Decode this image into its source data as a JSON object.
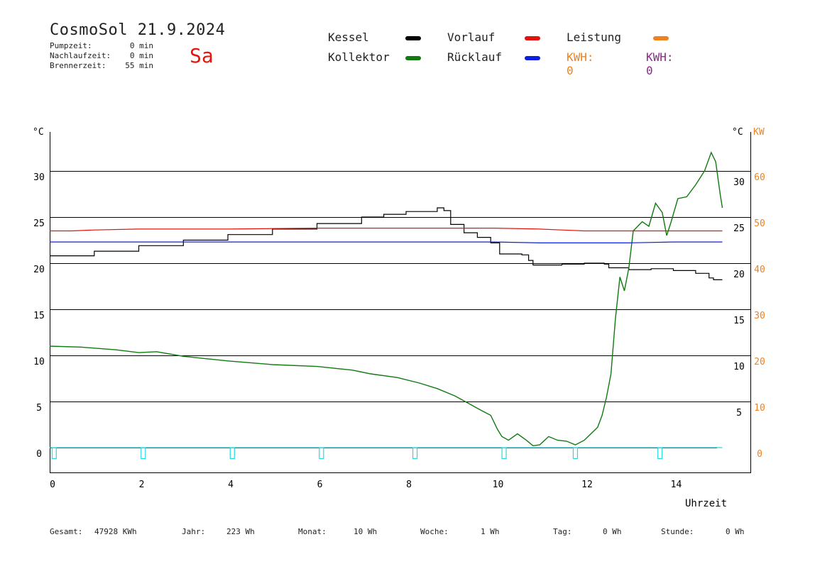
{
  "header": {
    "title": "CosmoSol 21.9.2024",
    "day": "Sa",
    "pump_label": "Pumpzeit:",
    "pump_value": "0 min",
    "nachlauf_label": "Nachlaufzeit:",
    "nachlauf_value": "0 min",
    "brenner_label": "Brennerzeit:",
    "brenner_value": "55 min"
  },
  "legend": {
    "kessel": "Kessel",
    "kollektor": "Kollektor",
    "vorlauf": "Vorlauf",
    "ruecklauf": "Rücklauf",
    "leistung": "Leistung",
    "kwh1": "KWH: 0",
    "kwh2": "KWH: 0"
  },
  "colors": {
    "kessel": "#000000",
    "kollektor": "#117a11",
    "vorlauf": "#e0140c",
    "ruecklauf": "#0c1ee0",
    "leistung": "#f0821e",
    "kwh2": "#8a2a8a",
    "pump": "#2ad8e0",
    "grid": "#000000"
  },
  "footer": {
    "gesamt_label": "Gesamt:",
    "gesamt_value": "47928 KWh",
    "jahr_label": "Jahr:",
    "jahr_value": "223 Wh",
    "monat_label": "Monat:",
    "monat_value": "10 Wh",
    "woche_label": "Woche:",
    "woche_value": "1 Wh",
    "tag_label": "Tag:",
    "tag_value": "0 Wh",
    "stunde_label": "Stunde:",
    "stunde_value": "0 Wh"
  },
  "chart_data": {
    "type": "line",
    "xlabel": "Uhrzeit",
    "ylabel_left": "°C",
    "ylabel_right_c": "°C",
    "ylabel_right_kw": "KW",
    "xlim": [
      0,
      16
    ],
    "ylim": [
      -2.5,
      34.5
    ],
    "x_ticks": [
      0,
      2,
      4,
      6,
      8,
      10,
      12,
      14
    ],
    "y_left_ticks": [
      0,
      5,
      10,
      15,
      20,
      25,
      30
    ],
    "y_right_c_ticks": [
      5,
      10,
      15,
      20,
      25,
      30
    ],
    "y_right_kw_ticks": [
      0,
      10,
      20,
      30,
      40,
      50,
      60
    ],
    "grid": true,
    "series": [
      {
        "name": "Kessel",
        "x": [
          0,
          1,
          2,
          3,
          4,
          5,
          6,
          7,
          7.5,
          8,
          8.7,
          8.85,
          9.0,
          9.3,
          9.6,
          9.9,
          10.1,
          10.3,
          10.6,
          10.75,
          10.85,
          11.5,
          12.0,
          12.45,
          12.55,
          13.0,
          13.5,
          14.0,
          14.5,
          14.8,
          14.9,
          15.1
        ],
        "y": [
          20.8,
          21.3,
          21.9,
          22.5,
          23.1,
          23.7,
          24.3,
          25.0,
          25.3,
          25.6,
          26.0,
          25.7,
          24.2,
          23.3,
          22.8,
          22.2,
          21.0,
          21.0,
          20.9,
          20.3,
          19.8,
          19.9,
          20.0,
          19.9,
          19.5,
          19.3,
          19.4,
          19.2,
          18.9,
          18.4,
          18.2,
          18.2
        ]
      },
      {
        "name": "Kollektor",
        "x": [
          0,
          0.7,
          1.5,
          2.0,
          2.4,
          3.0,
          4.0,
          5.0,
          6.0,
          6.8,
          7.2,
          7.8,
          8.3,
          8.7,
          9.1,
          9.4,
          9.7,
          9.9,
          10.05,
          10.15,
          10.3,
          10.5,
          10.7,
          10.85,
          11.0,
          11.2,
          11.4,
          11.6,
          11.8,
          12.0,
          12.15,
          12.3,
          12.4,
          12.5,
          12.6,
          12.7,
          12.8,
          12.9,
          13.0,
          13.1,
          13.3,
          13.45,
          13.6,
          13.75,
          13.85,
          13.95,
          14.1,
          14.3,
          14.5,
          14.7,
          14.85,
          14.95,
          15.05,
          15.1
        ],
        "y": [
          11.0,
          10.9,
          10.6,
          10.3,
          10.4,
          9.9,
          9.4,
          9.0,
          8.8,
          8.4,
          8.0,
          7.6,
          7.0,
          6.4,
          5.6,
          4.8,
          4.0,
          3.5,
          2.0,
          1.2,
          0.8,
          1.5,
          0.8,
          0.2,
          0.3,
          1.2,
          0.8,
          0.7,
          0.3,
          0.8,
          1.5,
          2.2,
          3.5,
          5.5,
          8.0,
          14.0,
          18.5,
          17.0,
          19.5,
          23.5,
          24.5,
          24.0,
          26.5,
          25.5,
          23.0,
          24.5,
          27.0,
          27.2,
          28.5,
          30.0,
          32.0,
          31.0,
          27.5,
          26.0
        ]
      },
      {
        "name": "Vorlauf",
        "x": [
          0,
          0.5,
          1.0,
          2.0,
          4.0,
          6.0,
          8.0,
          9.0,
          10.0,
          11.0,
          11.5,
          12.0,
          13.0,
          14.0,
          15.1
        ],
        "y": [
          23.5,
          23.5,
          23.6,
          23.7,
          23.7,
          23.8,
          23.8,
          23.8,
          23.8,
          23.7,
          23.6,
          23.5,
          23.5,
          23.5,
          23.5
        ]
      },
      {
        "name": "Rücklauf",
        "x": [
          0,
          2.0,
          4.0,
          6.0,
          8.0,
          9.0,
          10.0,
          11.0,
          12.0,
          13.0,
          14.0,
          15.1
        ],
        "y": [
          22.3,
          22.3,
          22.3,
          22.3,
          22.3,
          22.3,
          22.3,
          22.2,
          22.2,
          22.2,
          22.3,
          22.3
        ]
      },
      {
        "name": "Leistung",
        "x": [
          0,
          15.1
        ],
        "y": [
          0,
          0
        ]
      }
    ],
    "pump_markers_x": [
      0.1,
      2.1,
      4.1,
      6.1,
      8.2,
      10.2,
      11.8,
      13.7
    ]
  }
}
